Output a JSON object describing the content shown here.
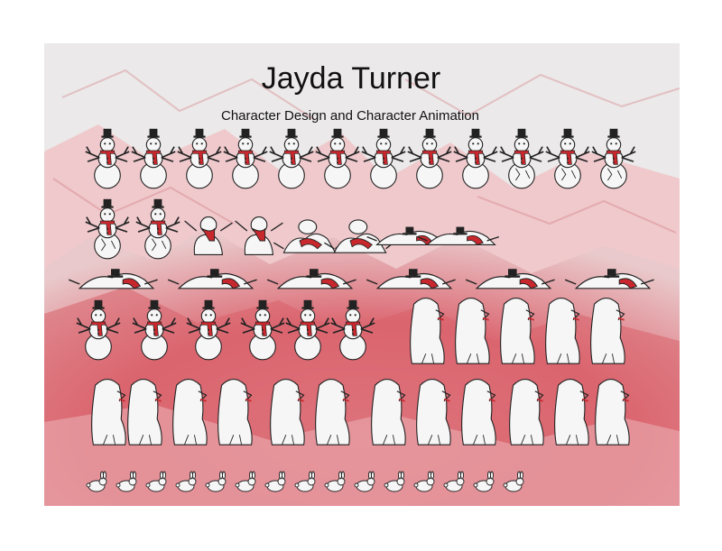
{
  "poster": {
    "title": "Jayda Turner",
    "subtitle": "Character Design and Character Animation"
  },
  "colors": {
    "background_light": "#ecebeb",
    "background_red": "#d9505a",
    "scarf": "#c8282d",
    "snow": "#f6f6f6",
    "outline": "#222222"
  },
  "frames": {
    "row1": [
      "snowman-idle",
      "snowman-idle",
      "snowman-idle",
      "snowman-idle",
      "snowman-idle",
      "snowman-idle",
      "snowman-idle",
      "snowman-idle",
      "snowman-idle",
      "snowman-cracked",
      "snowman-cracked",
      "snowman-cracked"
    ],
    "row2": [
      "snowman-cracked",
      "snowman-cracked",
      "snowman-breaking",
      "snowman-breaking",
      "snowman-collapse",
      "snowman-collapse",
      "snowman-pile",
      "snowman-pile"
    ],
    "row3": [
      "snowman-pile",
      "snowman-pile",
      "snowman-pile",
      "snowman-pile",
      "snowman-pile",
      "snowman-pile"
    ],
    "row4": [
      "snowman-reform",
      "snowman-reform",
      "snowman-reform",
      "snowman-reform",
      "snowman-reform",
      "snowman-reform",
      "yeti",
      "yeti",
      "yeti",
      "yeti",
      "yeti"
    ],
    "row5": [
      "yeti",
      "yeti",
      "yeti",
      "yeti",
      "yeti",
      "yeti",
      "yeti",
      "yeti",
      "yeti",
      "yeti",
      "yeti",
      "yeti"
    ],
    "row6": [
      "bunny",
      "bunny",
      "bunny",
      "bunny",
      "bunny",
      "bunny",
      "bunny",
      "bunny",
      "bunny",
      "bunny",
      "bunny",
      "bunny",
      "bunny",
      "bunny",
      "bunny"
    ]
  }
}
